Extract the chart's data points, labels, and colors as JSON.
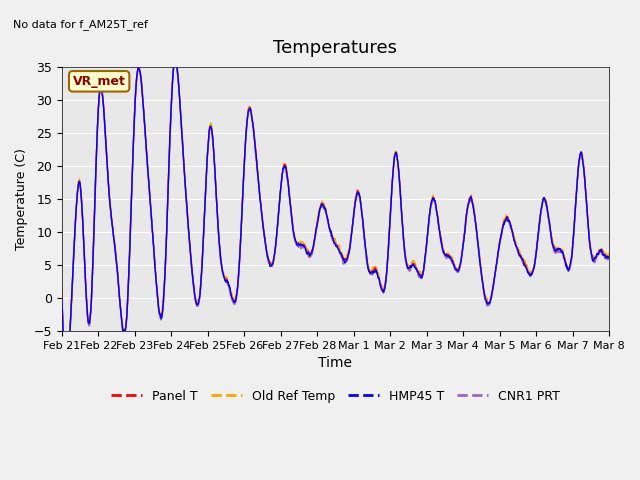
{
  "title": "Temperatures",
  "xlabel": "Time",
  "ylabel": "Temperature (C)",
  "ylim": [
    -5,
    35
  ],
  "no_data_text": "No data for f_AM25T_ref",
  "vr_met_label": "VR_met",
  "background_color": "#e8e8e8",
  "series_colors": {
    "Panel T": "#ff0000",
    "Old Ref Temp": "#ffa500",
    "HMP45 T": "#0000ff",
    "CNR1 PRT": "#9966cc"
  },
  "series_lw": 1.0,
  "xtick_labels": [
    "Feb 21",
    "Feb 22",
    "Feb 23",
    "Feb 24",
    "Feb 25",
    "Feb 26",
    "Feb 27",
    "Feb 28",
    "Mar 1",
    "Mar 2",
    "Mar 3",
    "Mar 4",
    "Mar 5",
    "Mar 6",
    "Mar 7",
    "Mar 8"
  ],
  "ytick_vals": [
    -5,
    0,
    5,
    10,
    15,
    20,
    25,
    30,
    35
  ],
  "grid_color": "#ffffff",
  "grid_lw": 0.8,
  "fig_bg": "#f0f0f0",
  "base_temps": [
    1,
    -2,
    17,
    -4,
    30,
    18,
    4,
    -3,
    32,
    25,
    6,
    0,
    34,
    24,
    5,
    2,
    26,
    8,
    2,
    2,
    27,
    21,
    8,
    7,
    20,
    10,
    8,
    7,
    14,
    10,
    7,
    7,
    16,
    5,
    4,
    3,
    22,
    7,
    5,
    4,
    15,
    8,
    6,
    5,
    15,
    7,
    -1,
    6,
    12,
    8,
    5,
    5,
    15,
    8,
    7,
    6,
    22,
    8,
    7,
    6,
    8,
    7,
    7,
    7
  ]
}
